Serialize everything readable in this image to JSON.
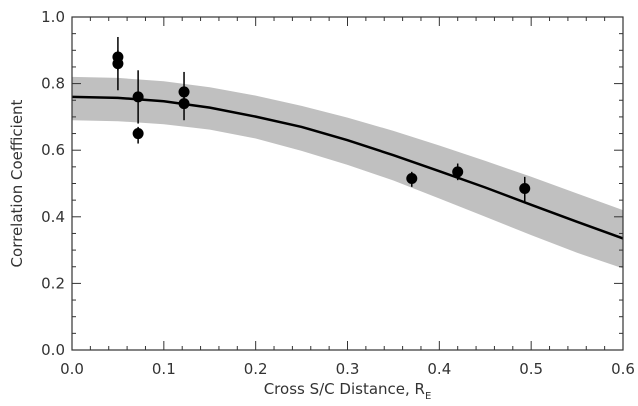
{
  "chart_data": {
    "type": "scatter",
    "xlabel": "Cross S/C Distance, R",
    "xlabel_subscript": "E",
    "ylabel": "Correlation Coefficient",
    "xlim": [
      0.0,
      0.6
    ],
    "ylim": [
      0.0,
      1.0
    ],
    "xticks": [
      0.0,
      0.1,
      0.2,
      0.3,
      0.4,
      0.5,
      0.6
    ],
    "xtick_labels": [
      "0.0",
      "0.1",
      "0.2",
      "0.3",
      "0.4",
      "0.5",
      "0.6"
    ],
    "yticks": [
      0.0,
      0.2,
      0.4,
      0.6,
      0.8,
      1.0
    ],
    "ytick_labels": [
      "0.0",
      "0.2",
      "0.4",
      "0.6",
      "0.8",
      "1.0"
    ],
    "grid": false,
    "colors": {
      "points": "#000000",
      "band": "#c0c0c0",
      "fit": "#000000",
      "axes": "#333333"
    },
    "points": [
      {
        "x": 0.05,
        "y": 0.88,
        "err_low": 0.84,
        "err_high": 0.94
      },
      {
        "x": 0.05,
        "y": 0.86,
        "err_low": 0.78,
        "err_high": 0.9
      },
      {
        "x": 0.072,
        "y": 0.76,
        "err_low": 0.68,
        "err_high": 0.84
      },
      {
        "x": 0.072,
        "y": 0.65,
        "err_low": 0.62,
        "err_high": 0.67
      },
      {
        "x": 0.122,
        "y": 0.775,
        "err_low": 0.75,
        "err_high": 0.835
      },
      {
        "x": 0.122,
        "y": 0.74,
        "err_low": 0.69,
        "err_high": 0.78
      },
      {
        "x": 0.37,
        "y": 0.515,
        "err_low": 0.49,
        "err_high": 0.535
      },
      {
        "x": 0.42,
        "y": 0.535,
        "err_low": 0.51,
        "err_high": 0.56
      },
      {
        "x": 0.493,
        "y": 0.485,
        "err_low": 0.44,
        "err_high": 0.52
      }
    ],
    "fit_curve": {
      "x": [
        0.0,
        0.05,
        0.1,
        0.15,
        0.2,
        0.25,
        0.3,
        0.35,
        0.4,
        0.45,
        0.5,
        0.55,
        0.6
      ],
      "y": [
        0.76,
        0.757,
        0.747,
        0.728,
        0.701,
        0.67,
        0.63,
        0.585,
        0.537,
        0.488,
        0.436,
        0.385,
        0.335
      ]
    },
    "confidence_band": {
      "x": [
        0.0,
        0.05,
        0.1,
        0.15,
        0.2,
        0.25,
        0.3,
        0.35,
        0.4,
        0.45,
        0.5,
        0.55,
        0.6
      ],
      "upper": [
        0.82,
        0.817,
        0.807,
        0.789,
        0.764,
        0.733,
        0.698,
        0.658,
        0.614,
        0.568,
        0.52,
        0.47,
        0.42
      ],
      "lower": [
        0.69,
        0.687,
        0.678,
        0.662,
        0.635,
        0.598,
        0.556,
        0.509,
        0.455,
        0.4,
        0.345,
        0.292,
        0.245
      ]
    }
  }
}
